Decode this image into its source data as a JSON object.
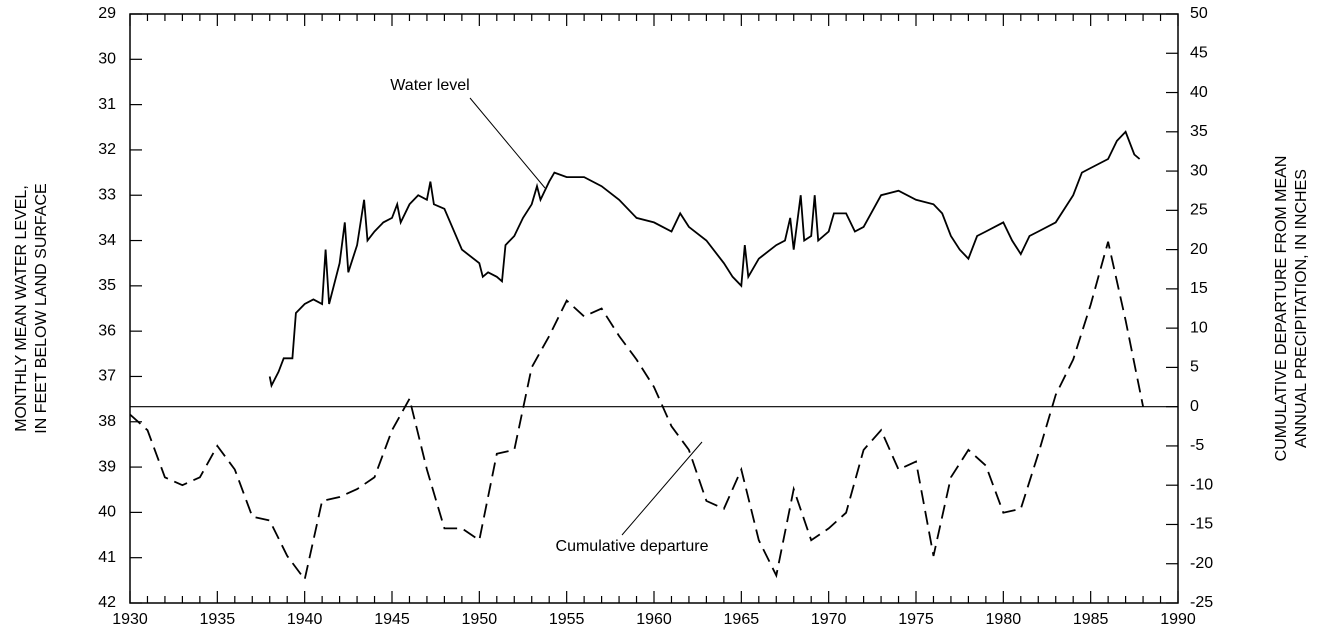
{
  "chart_data": {
    "type": "line",
    "ylabel": [
      "MONTHLY MEAN WATER LEVEL,",
      "IN FEET BELOW LAND SURFACE"
    ],
    "y2label": [
      "CUMULATIVE DEPARTURE FROM MEAN",
      "ANNUAL PRECIPITATION, IN INCHES"
    ],
    "xlim": [
      1930,
      1990
    ],
    "xticks": [
      1930,
      1935,
      1940,
      1945,
      1950,
      1955,
      1960,
      1965,
      1970,
      1975,
      1980,
      1985,
      1990
    ],
    "xminorticks": [
      1931,
      1932,
      1933,
      1934,
      1936,
      1937,
      1938,
      1939,
      1941,
      1942,
      1943,
      1944,
      1946,
      1947,
      1948,
      1949,
      1951,
      1952,
      1953,
      1954,
      1956,
      1957,
      1958,
      1959,
      1961,
      1962,
      1963,
      1964,
      1966,
      1967,
      1968,
      1969,
      1971,
      1972,
      1973,
      1974,
      1976,
      1977,
      1978,
      1979,
      1981,
      1982,
      1983,
      1984,
      1986,
      1987,
      1988,
      1989
    ],
    "ylim": [
      42,
      29
    ],
    "yticks": [
      29,
      30,
      31,
      32,
      33,
      34,
      35,
      36,
      37,
      38,
      39,
      40,
      41,
      42
    ],
    "y2lim": [
      -25,
      50
    ],
    "y2ticks": [
      -25,
      -20,
      -15,
      -10,
      -5,
      0,
      5,
      10,
      15,
      20,
      25,
      30,
      35,
      40,
      45,
      50
    ],
    "reference_line": {
      "axis": "y2",
      "value": 0
    },
    "series": [
      {
        "name": "Water level",
        "color": "#000000",
        "dash": false,
        "x": [
          1938.0,
          1938.1,
          1938.5,
          1938.8,
          1939.3,
          1939.5,
          1940,
          1940.5,
          1941,
          1941.2,
          1941.4,
          1942,
          1942.3,
          1942.5,
          1943,
          1943.4,
          1943.6,
          1944,
          1944.5,
          1945,
          1945.3,
          1945.5,
          1946,
          1946.5,
          1947,
          1947.2,
          1947.4,
          1948,
          1949,
          1950,
          1950.2,
          1950.5,
          1951,
          1951.3,
          1951.5,
          1952,
          1952.5,
          1953,
          1953.3,
          1953.5,
          1954,
          1954.3,
          1955,
          1956,
          1957,
          1958,
          1959,
          1960,
          1961,
          1961.5,
          1962,
          1963,
          1964,
          1964.5,
          1965,
          1965.2,
          1965.4,
          1966,
          1967,
          1967.5,
          1967.8,
          1968,
          1968.4,
          1968.6,
          1969,
          1969.2,
          1969.4,
          1970,
          1970.3,
          1971,
          1971.5,
          1972,
          1973,
          1974,
          1975,
          1976,
          1976.5,
          1977,
          1977.5,
          1978,
          1978.5,
          1979,
          1980,
          1980.5,
          1981,
          1981.5,
          1982,
          1983,
          1984,
          1984.5,
          1985,
          1986,
          1986.5,
          1987,
          1987.5,
          1987.8
        ],
        "values": [
          37.0,
          37.2,
          36.9,
          36.6,
          36.6,
          35.6,
          35.4,
          35.3,
          35.4,
          34.2,
          35.4,
          34.5,
          33.6,
          34.7,
          34.1,
          33.1,
          34.0,
          33.8,
          33.6,
          33.5,
          33.2,
          33.6,
          33.2,
          33.0,
          33.1,
          32.7,
          33.2,
          33.3,
          34.2,
          34.5,
          34.8,
          34.7,
          34.8,
          34.9,
          34.1,
          33.9,
          33.5,
          33.2,
          32.8,
          33.1,
          32.7,
          32.5,
          32.6,
          32.6,
          32.8,
          33.1,
          33.5,
          33.6,
          33.8,
          33.4,
          33.7,
          34.0,
          34.5,
          34.8,
          35.0,
          34.1,
          34.8,
          34.4,
          34.1,
          34.0,
          33.5,
          34.2,
          33.0,
          34.0,
          33.9,
          33.0,
          34.0,
          33.8,
          33.4,
          33.4,
          33.8,
          33.7,
          33.0,
          32.9,
          33.1,
          33.2,
          33.4,
          33.9,
          34.2,
          34.4,
          33.9,
          33.8,
          33.6,
          34.0,
          34.3,
          33.9,
          33.8,
          33.6,
          33.0,
          32.5,
          32.4,
          32.2,
          31.8,
          31.6,
          32.1,
          32.2
        ]
      },
      {
        "name": "Cumulative departure",
        "color": "#000000",
        "dash": true,
        "axis": "y2",
        "x": [
          1930,
          1931,
          1932,
          1933,
          1934,
          1935,
          1936,
          1937,
          1938,
          1939,
          1940,
          1941,
          1942,
          1943,
          1944,
          1945,
          1946,
          1947,
          1948,
          1949,
          1950,
          1951,
          1952,
          1953,
          1954,
          1955,
          1956,
          1957,
          1958,
          1959,
          1960,
          1961,
          1962,
          1963,
          1964,
          1965,
          1966,
          1967,
          1968,
          1969,
          1970,
          1971,
          1972,
          1973,
          1974,
          1975,
          1976,
          1977,
          1978,
          1979,
          1980,
          1981,
          1982,
          1983,
          1984,
          1985,
          1986,
          1987,
          1988
        ],
        "values": [
          -1,
          -3,
          -9,
          -10,
          -9,
          -5,
          -8,
          -14,
          -14.5,
          -19,
          -22,
          -12,
          -11.5,
          -10.5,
          -9,
          -3,
          1,
          -8,
          -15.5,
          -15.5,
          -17,
          -6,
          -5.5,
          5,
          9,
          13.5,
          11.5,
          12.5,
          9,
          6,
          2.5,
          -2.5,
          -5.5,
          -12,
          -13,
          -8,
          -17,
          -21.5,
          -10.5,
          -17,
          -15.5,
          -13.5,
          -5.5,
          -3,
          -8,
          -7,
          -19,
          -9,
          -5.5,
          -7.5,
          -13.5,
          -13,
          -6,
          1.5,
          6,
          13,
          21,
          11,
          0
        ]
      }
    ]
  }
}
